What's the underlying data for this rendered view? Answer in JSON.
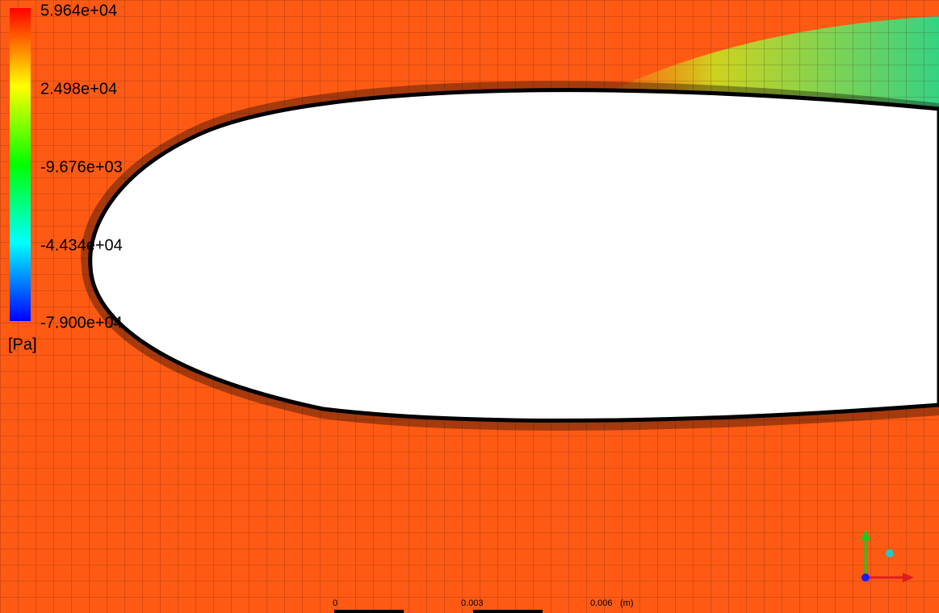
{
  "legend": {
    "labels": [
      "5.964e+04",
      "2.498e+04",
      "-9.676e+03",
      "-4.434e+04",
      "-7.900e+04"
    ],
    "unit": "[Pa]"
  },
  "scale_bar": {
    "labels": [
      "0",
      "0.003",
      "0.006"
    ],
    "unit": "(m)"
  }
}
